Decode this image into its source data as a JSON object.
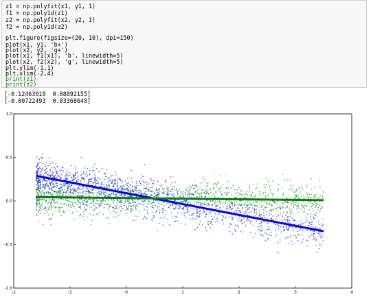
{
  "code_cell": {
    "lines": [
      "z1 = np.polyfit(x1, y1, 1)",
      "f1 = np.poly1d(z1)",
      "z2 = np.polyfit(x2, y2, 1)",
      "f2 = np.poly1d(z2)",
      "",
      "plt.figure(figsize=(20, 10), dpi=150)",
      "plot(x1, y1, 'b+')",
      "plot(x2, y2, 'g+')",
      "plot(x1, f1(x1), 'b', linewidth=5)",
      "plot(x2, f2(x2), 'g', linewidth=5)",
      "plt.ylim(-1,1)",
      "plt.xlim(-2,4)",
      "print(z1)",
      "print(z2)"
    ]
  },
  "output": {
    "lines": [
      "[-0.12463018  0.08892155]",
      "[-0.00722493  0.03368648]"
    ]
  },
  "chart_data": {
    "type": "scatter",
    "title": "",
    "xlabel": "",
    "ylabel": "",
    "xlim": [
      -2,
      4
    ],
    "ylim": [
      -1,
      1
    ],
    "x_ticks": [
      -2,
      -1,
      0,
      1,
      2,
      3,
      4
    ],
    "x_tick_labels": [
      "-2",
      "-1",
      "0",
      "1",
      "2",
      "3",
      "4"
    ],
    "y_ticks": [
      -1.0,
      -0.5,
      0.0,
      0.5,
      1.0
    ],
    "y_tick_labels": [
      "-1.0",
      "-0.5",
      "0.0",
      "0.5",
      "1.0"
    ],
    "grid": false,
    "series": [
      {
        "marker": "+",
        "color": "#0000ff",
        "x_range": [
          -1.6,
          3.5
        ],
        "fit": {
          "slope": -0.12463018,
          "intercept": 0.08892155,
          "linewidth": 5,
          "color": "#0000ff"
        }
      },
      {
        "marker": "+",
        "color": "#008000",
        "x_range": [
          -1.6,
          3.5
        ],
        "fit": {
          "slope": -0.00722493,
          "intercept": 0.03368648,
          "linewidth": 5,
          "color": "#008000"
        }
      }
    ]
  }
}
